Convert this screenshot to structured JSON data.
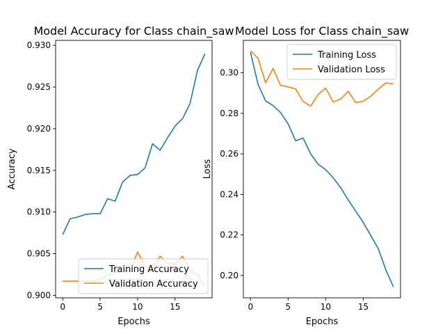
{
  "colors": {
    "training": "#1f77b4",
    "validation": "#ff7f0e"
  },
  "chart_data": [
    {
      "type": "line",
      "title": "Model Accuracy for Class chain_saw",
      "xlabel": "Epochs",
      "ylabel": "Accuracy",
      "xlim": [
        -0.95,
        19.95
      ],
      "ylim": [
        0.8997,
        0.9306
      ],
      "xticks": [
        0,
        5,
        10,
        15
      ],
      "yticks": [
        0.9,
        0.905,
        0.91,
        0.915,
        0.92,
        0.925,
        0.93
      ],
      "ytick_labels": [
        "0.900",
        "0.905",
        "0.910",
        "0.915",
        "0.920",
        "0.925",
        "0.930"
      ],
      "legend_position": "lower right",
      "x": [
        0,
        1,
        2,
        3,
        4,
        5,
        6,
        7,
        8,
        9,
        10,
        11,
        12,
        13,
        14,
        15,
        16,
        17,
        18,
        19
      ],
      "series": [
        {
          "name": "Training Accuracy",
          "color": "training",
          "values": [
            0.9073,
            0.9092,
            0.9094,
            0.9097,
            0.9098,
            0.9098,
            0.9116,
            0.9113,
            0.9136,
            0.9144,
            0.9145,
            0.9153,
            0.9182,
            0.9174,
            0.9189,
            0.9203,
            0.9212,
            0.923,
            0.927,
            0.929
          ]
        },
        {
          "name": "Validation Accuracy",
          "color": "validation",
          "values": [
            0.9017,
            0.9017,
            0.9017,
            0.9017,
            0.9017,
            0.9019,
            0.9024,
            0.9027,
            0.9029,
            0.903,
            0.9052,
            0.9035,
            0.9032,
            0.9047,
            0.9039,
            0.9037,
            0.9047,
            0.903,
            0.9025,
            0.901
          ]
        }
      ]
    },
    {
      "type": "line",
      "title": "Model Loss for Class chain_saw",
      "xlabel": "Epochs",
      "ylabel": "Loss",
      "xlim": [
        -0.95,
        19.95
      ],
      "ylim": [
        0.189,
        0.316
      ],
      "xticks": [
        0,
        5,
        10,
        15
      ],
      "yticks": [
        0.2,
        0.22,
        0.24,
        0.26,
        0.28,
        0.3
      ],
      "ytick_labels": [
        "0.20",
        "0.22",
        "0.24",
        "0.26",
        "0.28",
        "0.30"
      ],
      "legend_position": "upper right",
      "x": [
        0,
        1,
        2,
        3,
        4,
        5,
        6,
        7,
        8,
        9,
        10,
        11,
        12,
        13,
        14,
        15,
        16,
        17,
        18,
        19
      ],
      "series": [
        {
          "name": "Training Loss",
          "color": "training",
          "values": [
            0.3101,
            0.2943,
            0.2862,
            0.2838,
            0.2804,
            0.2748,
            0.2665,
            0.2678,
            0.26,
            0.2549,
            0.2522,
            0.2482,
            0.2433,
            0.2373,
            0.2317,
            0.2262,
            0.2197,
            0.2132,
            0.2028,
            0.1944
          ]
        },
        {
          "name": "Validation Loss",
          "color": "validation",
          "values": [
            0.3108,
            0.3072,
            0.2951,
            0.3021,
            0.2938,
            0.2931,
            0.292,
            0.2858,
            0.2836,
            0.2893,
            0.2925,
            0.2856,
            0.2871,
            0.2909,
            0.2853,
            0.286,
            0.2885,
            0.292,
            0.295,
            0.2946
          ]
        }
      ]
    }
  ]
}
